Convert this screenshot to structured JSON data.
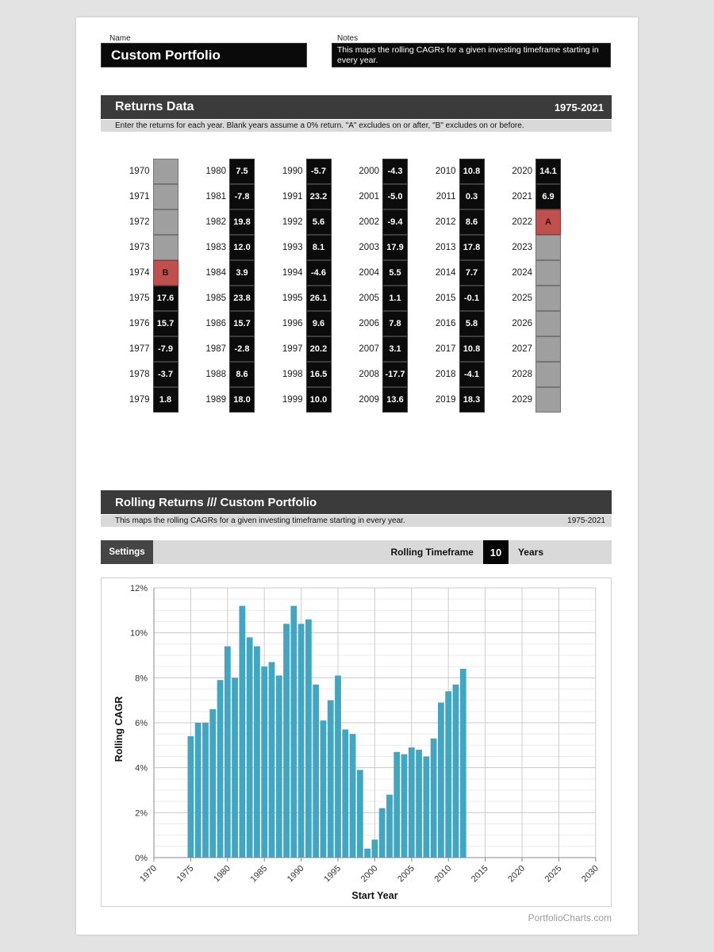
{
  "page": {
    "name_label": "Name",
    "name_value": "Custom Portfolio",
    "notes_label": "Notes",
    "notes_value": "This maps the rolling CAGRs for a given investing timeframe starting in every year.",
    "footer": "PortfolioCharts.com"
  },
  "returns_section": {
    "title": "Returns Data",
    "range": "1975-2021",
    "subtitle": "Enter the returns for each year. Blank years assume a 0% return. \"A\" excludes on or after, \"B\" excludes on or before.",
    "columns": [
      {
        "rows": [
          {
            "year": "1970",
            "value": "",
            "state": "empty"
          },
          {
            "year": "1971",
            "value": "",
            "state": "empty"
          },
          {
            "year": "1972",
            "value": "",
            "state": "empty"
          },
          {
            "year": "1973",
            "value": "",
            "state": "empty"
          },
          {
            "year": "1974",
            "value": "B",
            "state": "excluded"
          },
          {
            "year": "1975",
            "value": "17.6",
            "state": "filled"
          },
          {
            "year": "1976",
            "value": "15.7",
            "state": "filled"
          },
          {
            "year": "1977",
            "value": "-7.9",
            "state": "filled"
          },
          {
            "year": "1978",
            "value": "-3.7",
            "state": "filled"
          },
          {
            "year": "1979",
            "value": "1.8",
            "state": "filled"
          }
        ]
      },
      {
        "rows": [
          {
            "year": "1980",
            "value": "7.5",
            "state": "filled"
          },
          {
            "year": "1981",
            "value": "-7.8",
            "state": "filled"
          },
          {
            "year": "1982",
            "value": "19.8",
            "state": "filled"
          },
          {
            "year": "1983",
            "value": "12.0",
            "state": "filled"
          },
          {
            "year": "1984",
            "value": "3.9",
            "state": "filled"
          },
          {
            "year": "1985",
            "value": "23.8",
            "state": "filled"
          },
          {
            "year": "1986",
            "value": "15.7",
            "state": "filled"
          },
          {
            "year": "1987",
            "value": "-2.8",
            "state": "filled"
          },
          {
            "year": "1988",
            "value": "8.6",
            "state": "filled"
          },
          {
            "year": "1989",
            "value": "18.0",
            "state": "filled"
          }
        ]
      },
      {
        "rows": [
          {
            "year": "1990",
            "value": "-5.7",
            "state": "filled"
          },
          {
            "year": "1991",
            "value": "23.2",
            "state": "filled"
          },
          {
            "year": "1992",
            "value": "5.6",
            "state": "filled"
          },
          {
            "year": "1993",
            "value": "8.1",
            "state": "filled"
          },
          {
            "year": "1994",
            "value": "-4.6",
            "state": "filled"
          },
          {
            "year": "1995",
            "value": "26.1",
            "state": "filled"
          },
          {
            "year": "1996",
            "value": "9.6",
            "state": "filled"
          },
          {
            "year": "1997",
            "value": "20.2",
            "state": "filled"
          },
          {
            "year": "1998",
            "value": "16.5",
            "state": "filled"
          },
          {
            "year": "1999",
            "value": "10.0",
            "state": "filled"
          }
        ]
      },
      {
        "rows": [
          {
            "year": "2000",
            "value": "-4.3",
            "state": "filled"
          },
          {
            "year": "2001",
            "value": "-5.0",
            "state": "filled"
          },
          {
            "year": "2002",
            "value": "-9.4",
            "state": "filled"
          },
          {
            "year": "2003",
            "value": "17.9",
            "state": "filled"
          },
          {
            "year": "2004",
            "value": "5.5",
            "state": "filled"
          },
          {
            "year": "2005",
            "value": "1.1",
            "state": "filled"
          },
          {
            "year": "2006",
            "value": "7.8",
            "state": "filled"
          },
          {
            "year": "2007",
            "value": "3.1",
            "state": "filled"
          },
          {
            "year": "2008",
            "value": "-17.7",
            "state": "filled"
          },
          {
            "year": "2009",
            "value": "13.6",
            "state": "filled"
          }
        ]
      },
      {
        "rows": [
          {
            "year": "2010",
            "value": "10.8",
            "state": "filled"
          },
          {
            "year": "2011",
            "value": "0.3",
            "state": "filled"
          },
          {
            "year": "2012",
            "value": "8.6",
            "state": "filled"
          },
          {
            "year": "2013",
            "value": "17.8",
            "state": "filled"
          },
          {
            "year": "2014",
            "value": "7.7",
            "state": "filled"
          },
          {
            "year": "2015",
            "value": "-0.1",
            "state": "filled"
          },
          {
            "year": "2016",
            "value": "5.8",
            "state": "filled"
          },
          {
            "year": "2017",
            "value": "10.8",
            "state": "filled"
          },
          {
            "year": "2018",
            "value": "-4.1",
            "state": "filled"
          },
          {
            "year": "2019",
            "value": "18.3",
            "state": "filled"
          }
        ]
      },
      {
        "rows": [
          {
            "year": "2020",
            "value": "14.1",
            "state": "filled"
          },
          {
            "year": "2021",
            "value": "6.9",
            "state": "filled"
          },
          {
            "year": "2022",
            "value": "A",
            "state": "excluded"
          },
          {
            "year": "2023",
            "value": "",
            "state": "empty"
          },
          {
            "year": "2024",
            "value": "",
            "state": "empty"
          },
          {
            "year": "2025",
            "value": "",
            "state": "empty"
          },
          {
            "year": "2026",
            "value": "",
            "state": "empty"
          },
          {
            "year": "2027",
            "value": "",
            "state": "empty"
          },
          {
            "year": "2028",
            "value": "",
            "state": "empty"
          },
          {
            "year": "2029",
            "value": "",
            "state": "empty"
          }
        ]
      }
    ]
  },
  "rolling_section": {
    "title": "Rolling Returns /// Custom Portfolio",
    "subtitle": "This maps the rolling CAGRs for a given investing timeframe starting in every year.",
    "range": "1975-2021",
    "settings_label": "Settings",
    "timeframe_label": "Rolling Timeframe",
    "timeframe_value": "10",
    "timeframe_unit": "Years"
  },
  "chart_data": {
    "type": "bar",
    "title": "",
    "xlabel": "Start Year",
    "ylabel": "Rolling CAGR",
    "x": [
      1975,
      1976,
      1977,
      1978,
      1979,
      1980,
      1981,
      1982,
      1983,
      1984,
      1985,
      1986,
      1987,
      1988,
      1989,
      1990,
      1991,
      1992,
      1993,
      1994,
      1995,
      1996,
      1997,
      1998,
      1999,
      2000,
      2001,
      2002,
      2003,
      2004,
      2005,
      2006,
      2007,
      2008,
      2009,
      2010,
      2011,
      2012
    ],
    "values": [
      5.4,
      6.0,
      6.0,
      6.6,
      7.9,
      9.4,
      8.0,
      11.2,
      9.8,
      9.4,
      8.5,
      8.7,
      8.1,
      10.4,
      11.2,
      10.4,
      10.6,
      7.7,
      6.1,
      7.0,
      8.1,
      5.7,
      5.5,
      3.9,
      0.4,
      0.8,
      2.2,
      2.8,
      4.7,
      4.6,
      4.9,
      4.8,
      4.5,
      5.3,
      6.9,
      7.4,
      7.7,
      8.4
    ],
    "xlim": [
      1970,
      2030
    ],
    "ylim": [
      0,
      12
    ],
    "x_ticks": [
      1970,
      1975,
      1980,
      1985,
      1990,
      1995,
      2000,
      2005,
      2010,
      2015,
      2020,
      2025,
      2030
    ],
    "y_ticks": [
      0,
      2,
      4,
      6,
      8,
      10,
      12
    ],
    "y_tick_suffix": "%",
    "grid": true,
    "legend": "none",
    "bar_color": "#41a6c1"
  },
  "colors": {
    "header_bar": "#3b3b3b",
    "subtitle_bar": "#d9d9d9",
    "cell_filled": "#0b0b0b",
    "cell_empty": "#9f9f9f",
    "cell_excluded": "#c0504d",
    "bar": "#41a6c1"
  }
}
